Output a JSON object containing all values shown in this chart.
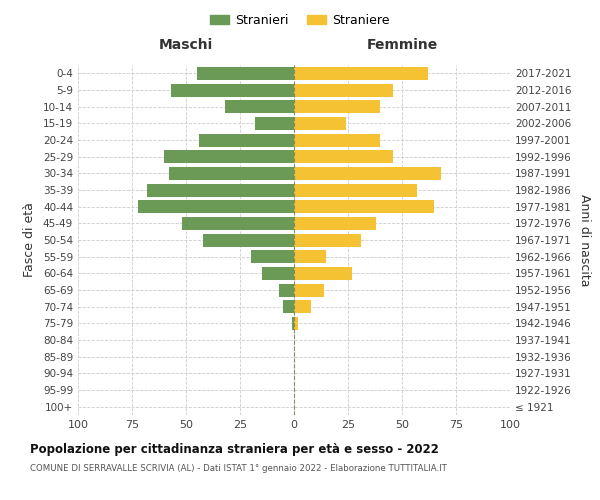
{
  "age_groups": [
    "100+",
    "95-99",
    "90-94",
    "85-89",
    "80-84",
    "75-79",
    "70-74",
    "65-69",
    "60-64",
    "55-59",
    "50-54",
    "45-49",
    "40-44",
    "35-39",
    "30-34",
    "25-29",
    "20-24",
    "15-19",
    "10-14",
    "5-9",
    "0-4"
  ],
  "birth_years": [
    "≤ 1921",
    "1922-1926",
    "1927-1931",
    "1932-1936",
    "1937-1941",
    "1942-1946",
    "1947-1951",
    "1952-1956",
    "1957-1961",
    "1962-1966",
    "1967-1971",
    "1972-1976",
    "1977-1981",
    "1982-1986",
    "1987-1991",
    "1992-1996",
    "1997-2001",
    "2002-2006",
    "2007-2011",
    "2012-2016",
    "2017-2021"
  ],
  "males": [
    0,
    0,
    0,
    0,
    0,
    1,
    5,
    7,
    15,
    20,
    42,
    52,
    72,
    68,
    58,
    60,
    44,
    18,
    32,
    57,
    45
  ],
  "females": [
    0,
    0,
    0,
    0,
    0,
    2,
    8,
    14,
    27,
    15,
    31,
    38,
    65,
    57,
    68,
    46,
    40,
    24,
    40,
    46,
    62
  ],
  "male_color": "#6a9a55",
  "female_color": "#f5c234",
  "bg_color": "#ffffff",
  "grid_color": "#cccccc",
  "title": "Popolazione per cittadinanza straniera per età e sesso - 2022",
  "subtitle": "COMUNE DI SERRAVALLE SCRIVIA (AL) - Dati ISTAT 1° gennaio 2022 - Elaborazione TUTTITALIA.IT",
  "header_left": "Maschi",
  "header_right": "Femmine",
  "ylabel_left": "Fasce di età",
  "ylabel_right": "Anni di nascita",
  "legend_male": "Stranieri",
  "legend_female": "Straniere",
  "xlim": 100
}
